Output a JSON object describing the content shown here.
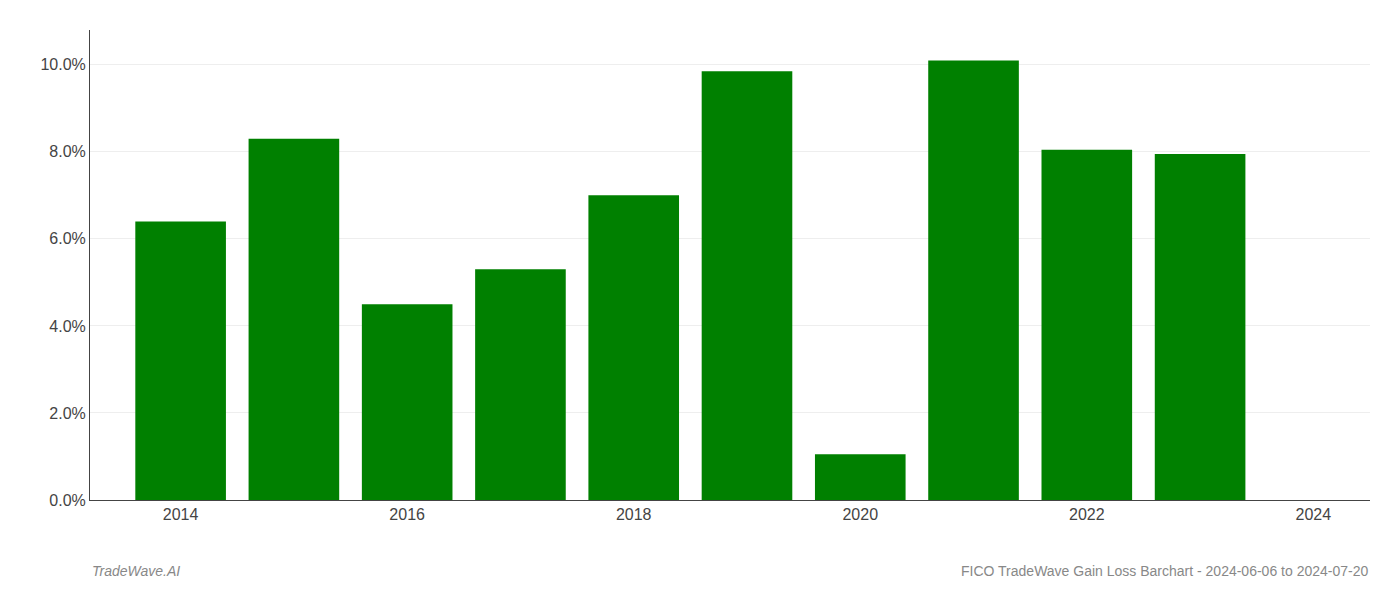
{
  "chart_data": {
    "type": "bar",
    "x": [
      2014,
      2015,
      2016,
      2017,
      2018,
      2019,
      2020,
      2021,
      2022,
      2023
    ],
    "values": [
      0.064,
      0.083,
      0.045,
      0.053,
      0.07,
      0.0985,
      0.0105,
      0.101,
      0.0805,
      0.0795
    ],
    "color": "#008000",
    "xlim": [
      2013.2,
      2024.5
    ],
    "xticks": [
      2014,
      2016,
      2018,
      2020,
      2022,
      2024
    ],
    "ylim": [
      0,
      0.108
    ],
    "yticks": [
      {
        "value": 0.0,
        "label": "0.0%"
      },
      {
        "value": 0.02,
        "label": "2.0%"
      },
      {
        "value": 0.04,
        "label": "4.0%"
      },
      {
        "value": 0.06,
        "label": "6.0%"
      },
      {
        "value": 0.08,
        "label": "8.0%"
      },
      {
        "value": 0.1,
        "label": "10.0%"
      }
    ],
    "grid": "y",
    "annotations": [
      "TradeWave.AI",
      "FICO TradeWave Gain Loss Barchart - 2024-06-06 to 2024-07-20"
    ]
  }
}
